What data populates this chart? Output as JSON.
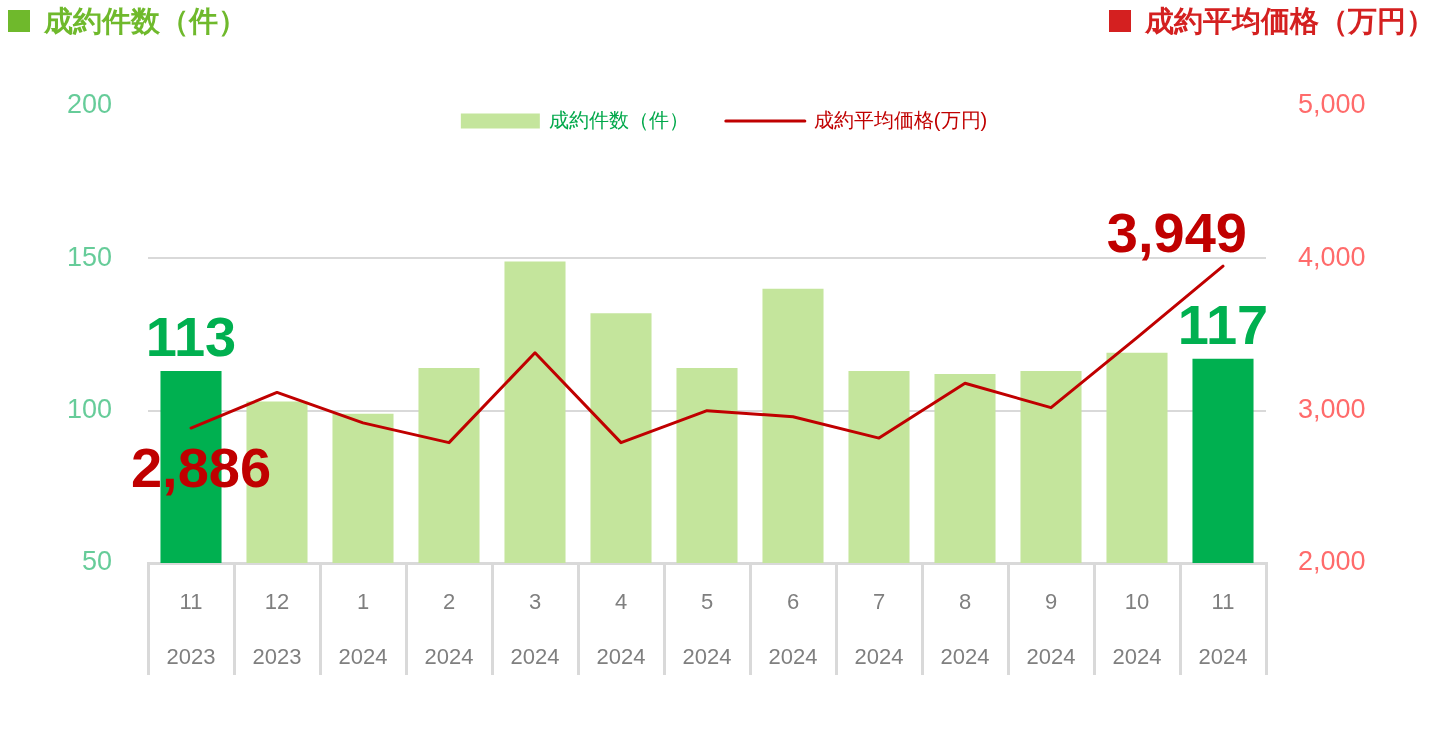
{
  "chart_data": {
    "type": "bar",
    "ylabel": "成約件数（件）",
    "y2label": "成約平均価格（万円）",
    "categories": [
      "11 2023",
      "12 2023",
      "1 2024",
      "2 2024",
      "3 2024",
      "4 2024",
      "5 2024",
      "6 2024",
      "7 2024",
      "8 2024",
      "9 2024",
      "10 2024",
      "11 2024"
    ],
    "series": [
      {
        "name": "成約件数（件）",
        "color": "#c4e59c",
        "colors": [
          "#00b050",
          "#c4e59c",
          "#c4e59c",
          "#c4e59c",
          "#c4e59c",
          "#c4e59c",
          "#c4e59c",
          "#c4e59c",
          "#c4e59c",
          "#c4e59c",
          "#c4e59c",
          "#c4e59c",
          "#00b050"
        ],
        "values": [
          113,
          103,
          99,
          114,
          149,
          132,
          114,
          140,
          113,
          112,
          113,
          119,
          117
        ],
        "value_labels": [
          "113",
          null,
          null,
          null,
          null,
          null,
          null,
          null,
          null,
          null,
          null,
          null,
          "117"
        ]
      },
      {
        "name": "成約平均価格(万円)",
        "type": "line",
        "axis": "y2",
        "color": "#c00000",
        "values": [
          2886,
          3120,
          2920,
          2790,
          3380,
          2790,
          3000,
          2960,
          2820,
          3180,
          3020,
          3480,
          3949
        ],
        "value_labels": [
          "2,886",
          null,
          null,
          null,
          null,
          null,
          null,
          null,
          null,
          null,
          null,
          null,
          "3,949"
        ]
      }
    ],
    "ylim": [
      50,
      200
    ],
    "yticks": [
      50,
      100,
      150,
      200
    ],
    "y2lim": [
      2000,
      5000
    ],
    "y2ticks": [
      {
        "value": 2000,
        "label": "2,000"
      },
      {
        "value": 3000,
        "label": "3,000"
      },
      {
        "value": 4000,
        "label": "4,000"
      },
      {
        "value": 5000,
        "label": "5,000"
      }
    ],
    "grid": "y",
    "legend": "top",
    "marker": "none"
  }
}
